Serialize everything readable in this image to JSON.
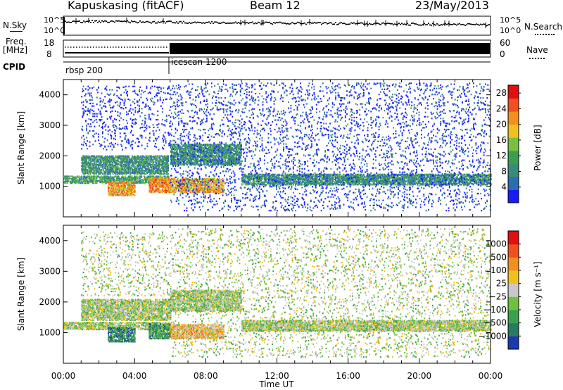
{
  "header": {
    "station": "Kapuskasing (fitACF)",
    "beam": "Beam 12",
    "date": "23/May/2013"
  },
  "top_panels": {
    "nsky_label": "N.Sky",
    "nsky_ticks": [
      "10^5",
      "10^0"
    ],
    "nsearch_label": "N.Search",
    "nsearch_ticks": [
      "10^5",
      "10^0"
    ],
    "freq_label": "Freq.",
    "freq_unit": "[MHz]",
    "freq_ticks": [
      "18",
      "8"
    ],
    "nave_label": "Nave",
    "nave_ticks": [
      "60",
      "0"
    ],
    "cpid_label": "CPID",
    "cpid_segments": [
      {
        "name": "rbsp 200"
      },
      {
        "name": "icescan 1200"
      }
    ]
  },
  "chart_data": [
    {
      "type": "heatmap",
      "name": "power",
      "ylabel": "Slant Range [km]",
      "xlabel": "Time UT",
      "x_ticks": [
        "00:00",
        "04:00",
        "08:00",
        "12:00",
        "16:00",
        "20:00",
        "00:00"
      ],
      "y_ticks": [
        1000,
        2000,
        3000,
        4000
      ],
      "ylim": [
        0,
        4500
      ],
      "xlim_hours": [
        0,
        24
      ],
      "colorbar": {
        "label": "Power [dB]",
        "ticks": [
          "4",
          "8",
          "12",
          "16",
          "20",
          "24",
          "28"
        ],
        "range": [
          0,
          30
        ],
        "colors": [
          "#1a1aff",
          "#2a6db0",
          "#3a8a7a",
          "#3aa050",
          "#7ac040",
          "#f0c020",
          "#f09020",
          "#f05020",
          "#e01010"
        ]
      },
      "bands": [
        {
          "t0": 0.0,
          "t1": 5.9,
          "r0": 1100,
          "r1": 1350,
          "level": 0.35
        },
        {
          "t0": 1.0,
          "t1": 5.9,
          "r0": 1400,
          "r1": 2000,
          "level": 0.3
        },
        {
          "t0": 2.5,
          "t1": 4.0,
          "r0": 700,
          "r1": 1150,
          "level": 0.7
        },
        {
          "t0": 4.8,
          "t1": 6.0,
          "r0": 800,
          "r1": 1300,
          "level": 0.75
        },
        {
          "t0": 6.0,
          "t1": 9.0,
          "r0": 800,
          "r1": 1250,
          "level": 0.65
        },
        {
          "t0": 6.0,
          "t1": 10.0,
          "r0": 1700,
          "r1": 2400,
          "level": 0.3
        },
        {
          "t0": 10.0,
          "t1": 24.0,
          "r0": 1050,
          "r1": 1400,
          "level": 0.3
        },
        {
          "t0": 1.0,
          "t1": 6.0,
          "r0": 2200,
          "r1": 4300,
          "level": 0.05
        },
        {
          "t0": 6.0,
          "t1": 24.0,
          "r0": 200,
          "r1": 4400,
          "level": 0.1
        }
      ]
    },
    {
      "type": "heatmap",
      "name": "velocity",
      "ylabel": "Slant Range [km]",
      "xlabel": "Time UT",
      "x_ticks": [
        "00:00",
        "04:00",
        "08:00",
        "12:00",
        "16:00",
        "20:00",
        "00:00"
      ],
      "y_ticks": [
        1000,
        2000,
        3000,
        4000
      ],
      "ylim": [
        0,
        4500
      ],
      "xlim_hours": [
        0,
        24
      ],
      "colorbar": {
        "label": "Velocity [m s⁻¹]",
        "ticks": [
          "1000",
          "500",
          "100",
          "25",
          "−25",
          "−100",
          "−500",
          "−1000"
        ],
        "colors": [
          "#1a3ab0",
          "#2a7a60",
          "#3aa050",
          "#70c040",
          "#c8c8c8",
          "#f0c020",
          "#f09020",
          "#f05020",
          "#e01010"
        ]
      },
      "bands": [
        {
          "t0": 0.0,
          "t1": 5.9,
          "r0": 1100,
          "r1": 1350,
          "level": 0.45
        },
        {
          "t0": 1.0,
          "t1": 6.0,
          "r0": 1400,
          "r1": 2100,
          "level": 0.45
        },
        {
          "t0": 2.5,
          "t1": 4.0,
          "r0": 700,
          "r1": 1150,
          "level": 0.2
        },
        {
          "t0": 4.8,
          "t1": 6.0,
          "r0": 800,
          "r1": 1300,
          "level": 0.25
        },
        {
          "t0": 6.0,
          "t1": 9.0,
          "r0": 800,
          "r1": 1250,
          "level": 0.65
        },
        {
          "t0": 6.0,
          "t1": 10.0,
          "r0": 1700,
          "r1": 2400,
          "level": 0.45
        },
        {
          "t0": 10.0,
          "t1": 24.0,
          "r0": 1050,
          "r1": 1400,
          "level": 0.45
        },
        {
          "t0": 1.0,
          "t1": 6.0,
          "r0": 2200,
          "r1": 4300,
          "level": 0.45
        },
        {
          "t0": 6.0,
          "t1": 24.0,
          "r0": 200,
          "r1": 4400,
          "level": 0.45
        }
      ]
    }
  ]
}
